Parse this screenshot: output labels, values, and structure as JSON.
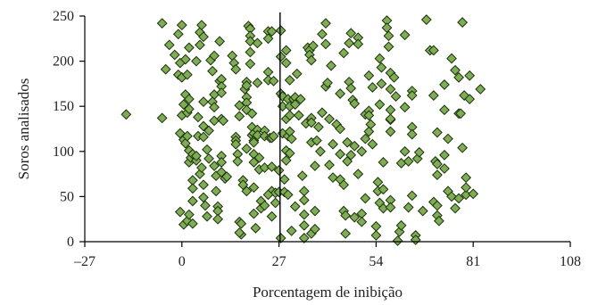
{
  "chart_data": {
    "type": "scatter",
    "xlabel": "Porcentagem de inibição",
    "ylabel": "Soros analisados",
    "xlim": [
      -27,
      108
    ],
    "ylim": [
      0,
      250
    ],
    "xticks": [
      -27,
      0,
      27,
      54,
      81,
      108
    ],
    "xtick_labels": [
      "–27",
      "0",
      "27",
      "54",
      "81",
      "108"
    ],
    "yticks": [
      0,
      50,
      100,
      150,
      200,
      250
    ],
    "ytick_labels": [
      "0",
      "50",
      "100",
      "150",
      "200",
      "250"
    ],
    "reference_line_x": 27.3,
    "grid": false,
    "legend": "none",
    "marker": {
      "shape": "diamond",
      "fill": "#7cb04e",
      "stroke": "#1e2e10"
    },
    "points": [
      [
        -15.5,
        141
      ],
      [
        -5.5,
        242
      ],
      [
        -5.5,
        137
      ],
      [
        -4.5,
        191
      ],
      [
        -3.5,
        218
      ],
      [
        -2,
        207
      ],
      [
        -1,
        230
      ],
      [
        0,
        240
      ],
      [
        -0.5,
        198
      ],
      [
        -1,
        185
      ],
      [
        0,
        182
      ],
      [
        0,
        140
      ],
      [
        0.5,
        152
      ],
      [
        1,
        163
      ],
      [
        1,
        202
      ],
      [
        1.5,
        185
      ],
      [
        1.5,
        143
      ],
      [
        2,
        158
      ],
      [
        2,
        215
      ],
      [
        2,
        147
      ],
      [
        -0.5,
        120
      ],
      [
        0.5,
        113
      ],
      [
        1,
        109
      ],
      [
        1.5,
        117
      ],
      [
        2,
        101
      ],
      [
        2,
        88
      ],
      [
        2.5,
        93
      ],
      [
        3,
        68
      ],
      [
        3,
        59
      ],
      [
        3,
        45
      ],
      [
        -0.5,
        33
      ],
      [
        0.5,
        19
      ],
      [
        1.5,
        23
      ],
      [
        2,
        30
      ],
      [
        3,
        20
      ],
      [
        3,
        97
      ],
      [
        4,
        90
      ],
      [
        4,
        95
      ],
      [
        4.5,
        117
      ],
      [
        4.5,
        138
      ],
      [
        4,
        200
      ],
      [
        5,
        218
      ],
      [
        5,
        232
      ],
      [
        5.5,
        240
      ],
      [
        6,
        227
      ],
      [
        6,
        155
      ],
      [
        6,
        128
      ],
      [
        6,
        116
      ],
      [
        5,
        75
      ],
      [
        5.5,
        82
      ],
      [
        6,
        63
      ],
      [
        6,
        49
      ],
      [
        6.5,
        40
      ],
      [
        7,
        28
      ],
      [
        7,
        102
      ],
      [
        7.5,
        123
      ],
      [
        7.5,
        92
      ],
      [
        8,
        201
      ],
      [
        8.5,
        189
      ],
      [
        9,
        206
      ],
      [
        9,
        163
      ],
      [
        8.5,
        155
      ],
      [
        9,
        149
      ],
      [
        9,
        134
      ],
      [
        9,
        84
      ],
      [
        9.5,
        73
      ],
      [
        9.5,
        56
      ],
      [
        10,
        39
      ],
      [
        10,
        34
      ],
      [
        10,
        25
      ],
      [
        10.5,
        222
      ],
      [
        10.5,
        178
      ],
      [
        11,
        180
      ],
      [
        11,
        172
      ],
      [
        11,
        165
      ],
      [
        11,
        136
      ],
      [
        11,
        95
      ],
      [
        11,
        88
      ],
      [
        11,
        77
      ],
      [
        11.5,
        134
      ],
      [
        12,
        70
      ],
      [
        12.5,
        72
      ],
      [
        14,
        206
      ],
      [
        14.5,
        198
      ],
      [
        15,
        191
      ],
      [
        15,
        116
      ],
      [
        15,
        112
      ],
      [
        15,
        108
      ],
      [
        15.5,
        97
      ],
      [
        15.5,
        89
      ],
      [
        16,
        151
      ],
      [
        16,
        139
      ],
      [
        16,
        22
      ],
      [
        16.5,
        20
      ],
      [
        16.5,
        8
      ],
      [
        17,
        68
      ],
      [
        17,
        63
      ],
      [
        17.5,
        169
      ],
      [
        18,
        177
      ],
      [
        18,
        173
      ],
      [
        18,
        160
      ],
      [
        18,
        154
      ],
      [
        18,
        146
      ],
      [
        18,
        103
      ],
      [
        18,
        56
      ],
      [
        18.5,
        239
      ],
      [
        19,
        236
      ],
      [
        19,
        228
      ],
      [
        19,
        222
      ],
      [
        19,
        210
      ],
      [
        19,
        197
      ],
      [
        19.5,
        142
      ],
      [
        19.5,
        127
      ],
      [
        19.5,
        118
      ],
      [
        20,
        120
      ],
      [
        20,
        112
      ],
      [
        20,
        110
      ],
      [
        20,
        97
      ],
      [
        20,
        88
      ],
      [
        20,
        60
      ],
      [
        20,
        31
      ],
      [
        20.5,
        15
      ],
      [
        21,
        220
      ],
      [
        21,
        176
      ],
      [
        21,
        124
      ],
      [
        21,
        118
      ],
      [
        21.5,
        93
      ],
      [
        21.5,
        80
      ],
      [
        22,
        45
      ],
      [
        22,
        37
      ],
      [
        23,
        123
      ],
      [
        23,
        117
      ],
      [
        23,
        82
      ],
      [
        23,
        40
      ],
      [
        24,
        233
      ],
      [
        24,
        225
      ],
      [
        24,
        188
      ],
      [
        24,
        179
      ],
      [
        24.5,
        115
      ],
      [
        25,
        233
      ],
      [
        25,
        115
      ],
      [
        25,
        83
      ],
      [
        25,
        56
      ],
      [
        25,
        28
      ],
      [
        25.5,
        178
      ],
      [
        25.5,
        117
      ],
      [
        26,
        54
      ],
      [
        26,
        43
      ],
      [
        27,
        79
      ],
      [
        27,
        55
      ],
      [
        27.5,
        234
      ],
      [
        27.5,
        205
      ],
      [
        27.5,
        4
      ],
      [
        27.5,
        164
      ],
      [
        28,
        161
      ],
      [
        28,
        150
      ],
      [
        28,
        120
      ],
      [
        28.5,
        69
      ],
      [
        28.5,
        55
      ],
      [
        29,
        212
      ],
      [
        29,
        198
      ],
      [
        29,
        136
      ],
      [
        29,
        101
      ],
      [
        29,
        90
      ],
      [
        29.5,
        158
      ],
      [
        29.5,
        117
      ],
      [
        29.5,
        52
      ],
      [
        30,
        179
      ],
      [
        30,
        150
      ],
      [
        30,
        140
      ],
      [
        30,
        122
      ],
      [
        30,
        98
      ],
      [
        30.5,
        114
      ],
      [
        30.5,
        12
      ],
      [
        31,
        158
      ],
      [
        31.5,
        160
      ],
      [
        31.5,
        152
      ],
      [
        31.5,
        39
      ],
      [
        32,
        186
      ],
      [
        32.5,
        140
      ],
      [
        33,
        158
      ],
      [
        33.5,
        73
      ],
      [
        34,
        56
      ],
      [
        34,
        46
      ],
      [
        34,
        18
      ],
      [
        34,
        4
      ],
      [
        34.5,
        131
      ],
      [
        35,
        215
      ],
      [
        35.5,
        212
      ],
      [
        35.5,
        207
      ],
      [
        36,
        201
      ],
      [
        36,
        137
      ],
      [
        36,
        132
      ],
      [
        36,
        110
      ],
      [
        36,
        9
      ],
      [
        36.5,
        217
      ],
      [
        37,
        34
      ],
      [
        37,
        14
      ],
      [
        37.5,
        112
      ],
      [
        38,
        127
      ],
      [
        38.5,
        100
      ],
      [
        39,
        143
      ],
      [
        39,
        230
      ],
      [
        40,
        219
      ],
      [
        40,
        172
      ],
      [
        40,
        242
      ],
      [
        40.5,
        176
      ],
      [
        41,
        136
      ],
      [
        41,
        85
      ],
      [
        41.5,
        195
      ],
      [
        42,
        108
      ],
      [
        42,
        71
      ],
      [
        43,
        130
      ],
      [
        44,
        125
      ],
      [
        44,
        97
      ],
      [
        44,
        69
      ],
      [
        45,
        209
      ],
      [
        45,
        63
      ],
      [
        45,
        34
      ],
      [
        45.5,
        29
      ],
      [
        45.5,
        9
      ],
      [
        46,
        110
      ],
      [
        46,
        89
      ],
      [
        46.5,
        220
      ],
      [
        46.5,
        177
      ],
      [
        47,
        170
      ],
      [
        47,
        231
      ],
      [
        47,
        96
      ],
      [
        47.5,
        157
      ],
      [
        48,
        153
      ],
      [
        48,
        106
      ],
      [
        48,
        27
      ],
      [
        49,
        226
      ],
      [
        49,
        219
      ],
      [
        50,
        100
      ],
      [
        50,
        31
      ],
      [
        50,
        22
      ],
      [
        51,
        141
      ],
      [
        51,
        114
      ],
      [
        51,
        48
      ],
      [
        52,
        184
      ],
      [
        52,
        145
      ],
      [
        52,
        140
      ],
      [
        52.5,
        130
      ],
      [
        53,
        171
      ],
      [
        53,
        108
      ],
      [
        54,
        17
      ],
      [
        54,
        7
      ],
      [
        54.5,
        66
      ],
      [
        54.5,
        56
      ],
      [
        55,
        203
      ],
      [
        55,
        152
      ],
      [
        55,
        43
      ],
      [
        55.5,
        193
      ],
      [
        55.5,
        175
      ],
      [
        56,
        88
      ],
      [
        56,
        58
      ],
      [
        56,
        37
      ],
      [
        57,
        245
      ],
      [
        57,
        237
      ],
      [
        57.5,
        228
      ],
      [
        57.5,
        216
      ],
      [
        58,
        187
      ],
      [
        58,
        169
      ],
      [
        58,
        146
      ],
      [
        58,
        135
      ],
      [
        58,
        122
      ],
      [
        58,
        46
      ],
      [
        58,
        38
      ],
      [
        59,
        182
      ],
      [
        59.5,
        161
      ],
      [
        60,
        1
      ],
      [
        60.5,
        11
      ],
      [
        61,
        87
      ],
      [
        61,
        18
      ],
      [
        62,
        229
      ],
      [
        62,
        149
      ],
      [
        62,
        100
      ],
      [
        63,
        89
      ],
      [
        63,
        38
      ],
      [
        64,
        167
      ],
      [
        64,
        162
      ],
      [
        64,
        127
      ],
      [
        64,
        119
      ],
      [
        64,
        51
      ],
      [
        65,
        7
      ],
      [
        65,
        2
      ],
      [
        65.5,
        92
      ],
      [
        66,
        99
      ],
      [
        67,
        34
      ],
      [
        68,
        246
      ],
      [
        69,
        212
      ],
      [
        70,
        212
      ],
      [
        70,
        162
      ],
      [
        70,
        44
      ],
      [
        70.5,
        89
      ],
      [
        71,
        121
      ],
      [
        71,
        86
      ],
      [
        71,
        74
      ],
      [
        71,
        40
      ],
      [
        71,
        29
      ],
      [
        71.5,
        23
      ],
      [
        73,
        174
      ],
      [
        73,
        146
      ],
      [
        73,
        96
      ],
      [
        73,
        81
      ],
      [
        74,
        114
      ],
      [
        74,
        56
      ],
      [
        75,
        50
      ],
      [
        75,
        203
      ],
      [
        76,
        190
      ],
      [
        76,
        37
      ],
      [
        77,
        48
      ],
      [
        77,
        182
      ],
      [
        77,
        142
      ],
      [
        77.5,
        142
      ],
      [
        78,
        104
      ],
      [
        78,
        243
      ],
      [
        78.5,
        162
      ],
      [
        79,
        71
      ],
      [
        79,
        52
      ],
      [
        79,
        60
      ],
      [
        80,
        184
      ],
      [
        80,
        158
      ],
      [
        81,
        53
      ],
      [
        83,
        169
      ],
      [
        16,
        10
      ],
      [
        24,
        52
      ],
      [
        37,
        84
      ],
      [
        44,
        164
      ],
      [
        49,
        75
      ],
      [
        52,
        122
      ],
      [
        58,
        136
      ],
      [
        34,
        30
      ]
    ]
  }
}
